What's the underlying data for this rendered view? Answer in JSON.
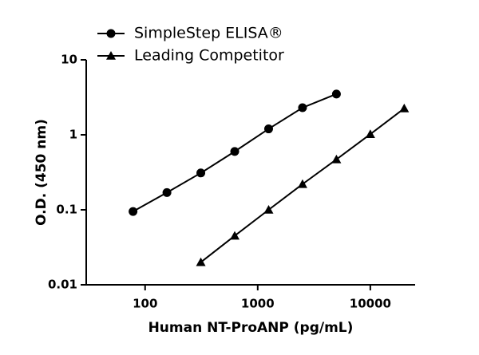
{
  "chart_data": {
    "type": "line",
    "x_label": "Human NT-ProANP (pg/mL)",
    "y_label": "O.D. (450 nm)",
    "xscale": "log",
    "yscale": "log",
    "xlim": [
      30,
      25000
    ],
    "ylim": [
      0.01,
      10
    ],
    "xticks": [
      100,
      1000,
      10000
    ],
    "yticks": [
      0.01,
      0.1,
      1,
      10
    ],
    "legend": "top-left",
    "series": [
      {
        "name": "SimpleStep ELISA®",
        "color": "#000000",
        "marker": "circle",
        "x": [
          78.125,
          156.25,
          312.5,
          625,
          1250,
          2500,
          5000
        ],
        "values": [
          0.095,
          0.17,
          0.31,
          0.6,
          1.2,
          2.3,
          3.5
        ]
      },
      {
        "name": "Leading Competitor",
        "color": "#000000",
        "marker": "triangle",
        "x": [
          312.5,
          625,
          1250,
          2500,
          5000,
          10000,
          20000
        ],
        "values": [
          0.02,
          0.045,
          0.1,
          0.22,
          0.47,
          1.02,
          2.25
        ]
      }
    ]
  }
}
